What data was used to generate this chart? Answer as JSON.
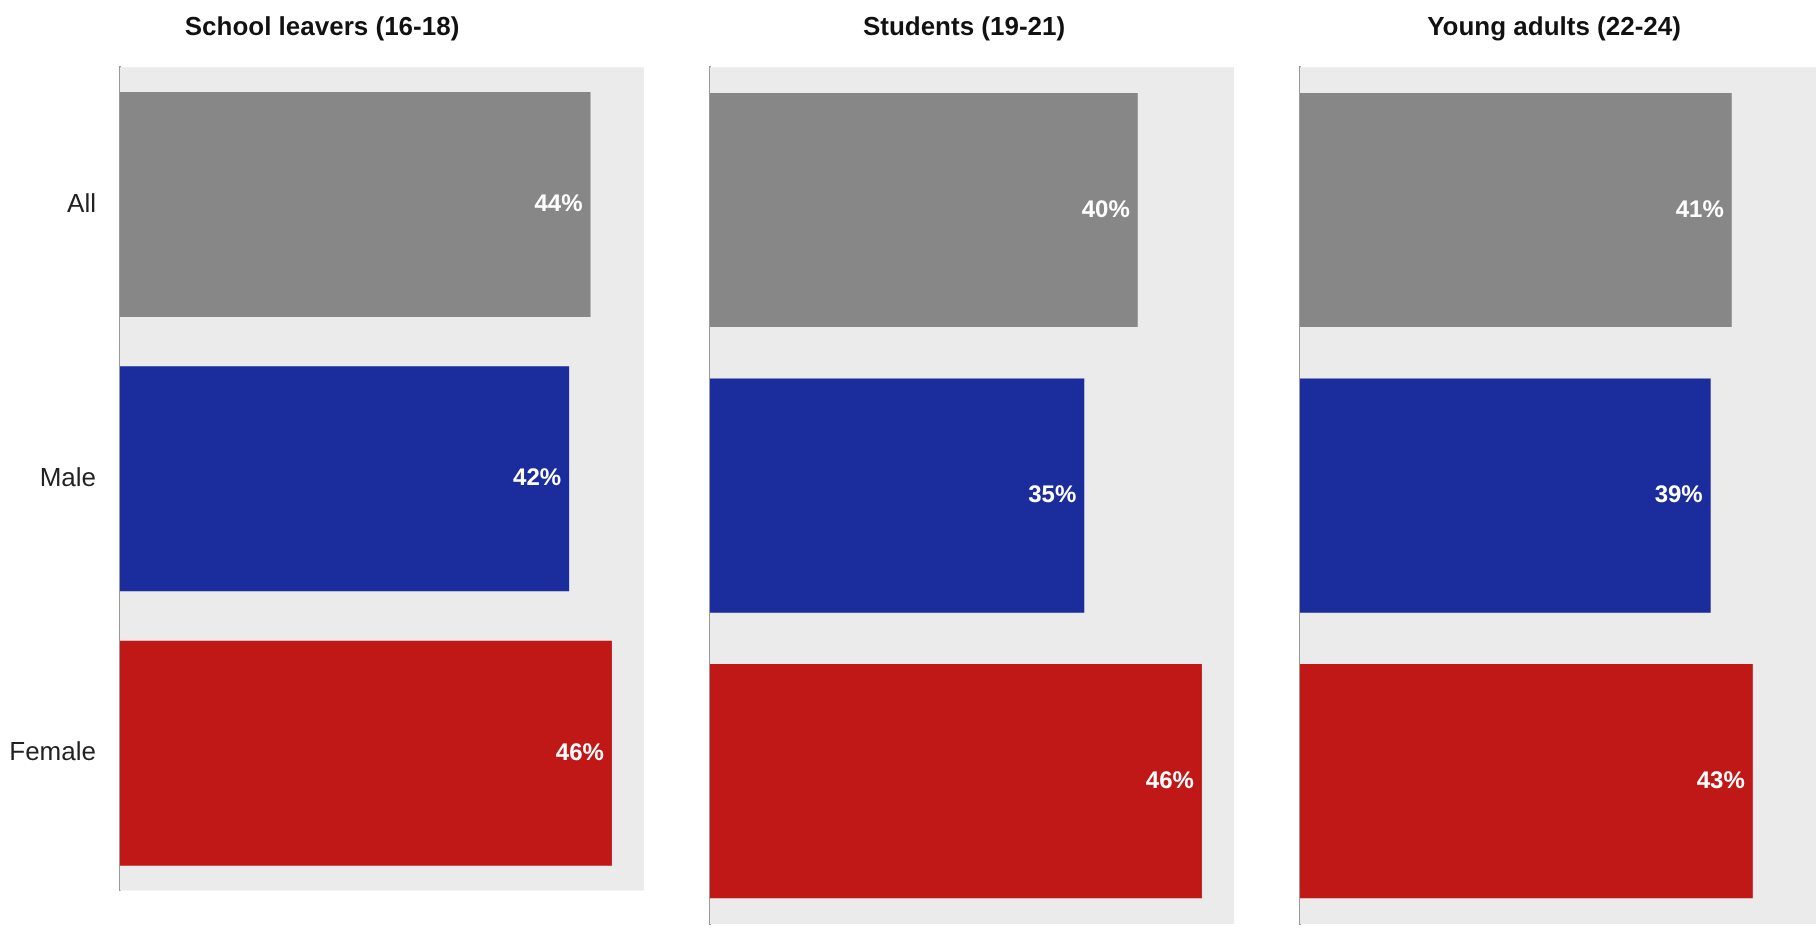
{
  "chart_data": [
    {
      "type": "bar",
      "orientation": "horizontal",
      "title": "School leavers (16-18)",
      "categories": [
        "All",
        "Male",
        "Female"
      ],
      "values": [
        44,
        42,
        46
      ],
      "colors": [
        "#878787",
        "#1b2d9c",
        "#c01717"
      ],
      "value_labels": [
        "44%",
        "42%",
        "46%"
      ],
      "xlim": [
        0,
        49
      ],
      "tick_labels": "y"
    },
    {
      "type": "bar",
      "orientation": "horizontal",
      "title": "Students (19-21)",
      "categories": [
        null,
        null,
        null
      ],
      "values": [
        40,
        35,
        46
      ],
      "colors": [
        "#878787",
        "#1b2d9c",
        "#c01717"
      ],
      "value_labels": [
        "40%",
        "35%",
        "46%"
      ],
      "xlim": [
        0,
        49
      ],
      "tick_labels": false
    },
    {
      "type": "bar",
      "orientation": "horizontal",
      "title": "Young adults (22-24)",
      "categories": [
        null,
        null,
        null
      ],
      "values": [
        41,
        39,
        43
      ],
      "colors": [
        "#878787",
        "#1b2d9c",
        "#c01717"
      ],
      "value_labels": [
        "41%",
        "39%",
        "43%"
      ],
      "xlim": [
        0,
        49
      ],
      "tick_labels": false
    }
  ]
}
